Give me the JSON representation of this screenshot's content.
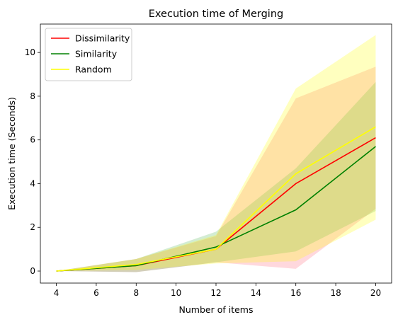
{
  "chart_data": {
    "type": "line",
    "title": "Execution time of Merging",
    "xlabel": "Number of items",
    "ylabel": "Execution time (Seconds)",
    "x": [
      4,
      8,
      12,
      16,
      20
    ],
    "xlim": [
      3.2,
      20.8
    ],
    "ylim": [
      -0.55,
      11.3
    ],
    "xticks": [
      4,
      6,
      8,
      10,
      12,
      14,
      16,
      18,
      20
    ],
    "yticks": [
      0,
      2,
      4,
      6,
      8,
      10
    ],
    "grid": false,
    "legend_position": "top-left",
    "series": [
      {
        "name": "Dissimilarity",
        "color": "#ff0000",
        "band_color": "#ff6478",
        "values": [
          0.0,
          0.25,
          1.0,
          4.0,
          6.1
        ],
        "lower": [
          0.0,
          -0.05,
          0.4,
          0.1,
          2.85
        ],
        "upper": [
          0.0,
          0.55,
          1.6,
          7.9,
          9.35
        ]
      },
      {
        "name": "Similarity",
        "color": "#008000",
        "band_color": "#50b450",
        "values": [
          0.0,
          0.25,
          1.1,
          2.8,
          5.7
        ],
        "lower": [
          0.0,
          -0.05,
          0.4,
          0.9,
          2.75
        ],
        "upper": [
          0.0,
          0.55,
          1.8,
          4.7,
          8.65
        ]
      },
      {
        "name": "Random",
        "color": "#ffff00",
        "band_color": "#ffff00",
        "values": [
          0.0,
          0.3,
          1.0,
          4.45,
          6.6
        ],
        "lower": [
          0.0,
          0.05,
          0.35,
          0.45,
          2.35
        ],
        "upper": [
          0.0,
          0.55,
          1.65,
          8.35,
          10.8
        ]
      }
    ]
  }
}
